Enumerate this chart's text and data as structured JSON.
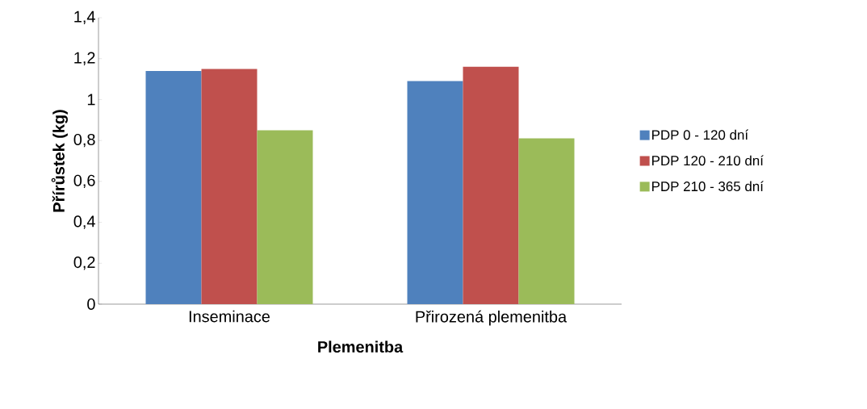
{
  "chart_data": {
    "type": "bar",
    "xlabel": "Plemenitba",
    "ylabel": "Přírůstek (kg)",
    "categories": [
      "Inseminace",
      "Přirozená plemenitba"
    ],
    "series": [
      {
        "name": "PDP 0 - 120 dní",
        "color": "#4f81bd",
        "values": [
          1.14,
          1.09
        ]
      },
      {
        "name": "PDP 120 - 210 dní",
        "color": "#c0504d",
        "values": [
          1.15,
          1.16
        ]
      },
      {
        "name": "PDP 210 - 365 dní",
        "color": "#9bbb59",
        "values": [
          0.85,
          0.81
        ]
      }
    ],
    "ylim": [
      0,
      1.4
    ],
    "yticks": [
      {
        "value": 0,
        "label": "0"
      },
      {
        "value": 0.2,
        "label": "0,2"
      },
      {
        "value": 0.4,
        "label": "0,4"
      },
      {
        "value": 0.6,
        "label": "0,6"
      },
      {
        "value": 0.8,
        "label": "0,8"
      },
      {
        "value": 1,
        "label": "1"
      },
      {
        "value": 1.2,
        "label": "1,2"
      },
      {
        "value": 1.4,
        "label": "1,4"
      }
    ],
    "grid": false,
    "legend": "right"
  }
}
